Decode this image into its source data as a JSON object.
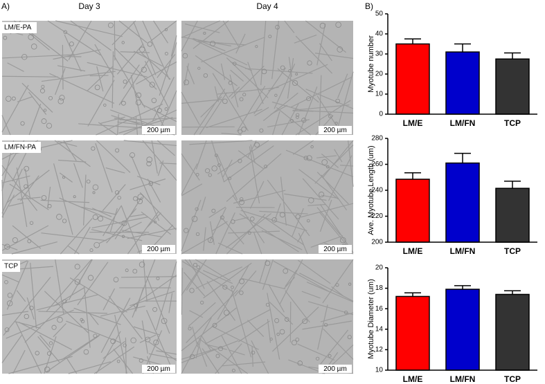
{
  "panel_a": {
    "label": "A)",
    "columns": [
      "Day 3",
      "Day 4"
    ],
    "rows": [
      "LM/E-PA",
      "LM/FN-PA",
      "TCP"
    ],
    "scale_bars": [
      "200 µm",
      "200 µm",
      "200 µm",
      "200 µm",
      "200 µm",
      "200 µm"
    ]
  },
  "panel_b": {
    "label": "B)"
  },
  "chart_data": [
    {
      "type": "bar",
      "ylabel": "Myotube number",
      "categories": [
        "LM/E",
        "LM/FN",
        "TCP"
      ],
      "values": [
        35,
        31,
        27.5
      ],
      "errors": [
        2.5,
        4,
        3
      ],
      "colors": [
        "#ff0000",
        "#0000cc",
        "#333333"
      ],
      "ylim": [
        0,
        50
      ],
      "yticks": [
        0,
        10,
        20,
        30,
        40,
        50
      ]
    },
    {
      "type": "bar",
      "ylabel": "Ave. Myotube Length (um)",
      "categories": [
        "LM/E",
        "LM/FN",
        "TCP"
      ],
      "values": [
        248.5,
        261,
        241.5
      ],
      "errors": [
        5,
        7.5,
        5.5
      ],
      "colors": [
        "#ff0000",
        "#0000cc",
        "#333333"
      ],
      "ylim": [
        200,
        280
      ],
      "yticks": [
        200,
        220,
        240,
        260,
        280
      ]
    },
    {
      "type": "bar",
      "ylabel": "Myotube Diameter (um)",
      "categories": [
        "LM/E",
        "LM/FN",
        "TCP"
      ],
      "values": [
        17.2,
        17.9,
        17.4
      ],
      "errors": [
        0.35,
        0.35,
        0.35
      ],
      "colors": [
        "#ff0000",
        "#0000cc",
        "#333333"
      ],
      "ylim": [
        10,
        20
      ],
      "yticks": [
        10,
        12,
        14,
        16,
        18,
        20
      ]
    }
  ]
}
